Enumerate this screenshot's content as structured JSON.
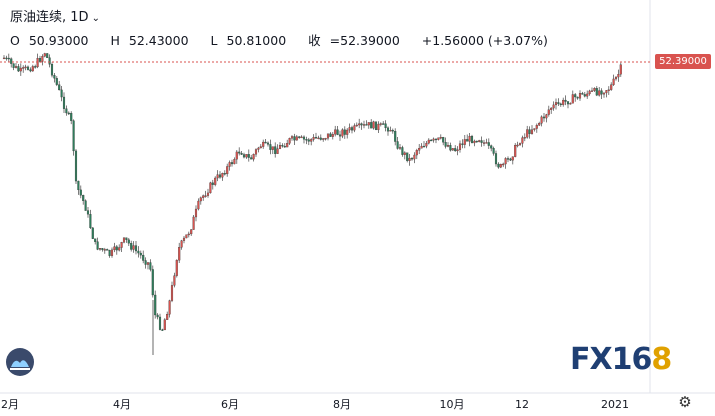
{
  "symbol": {
    "title": "原油连续",
    "interval": "1D"
  },
  "ohlc": {
    "open_label": "O",
    "open": "50.93000",
    "high_label": "H",
    "high": "52.43000",
    "low_label": "L",
    "low": "50.81000",
    "close_label": "收",
    "close": "=52.39000",
    "change": "+1.56000 (+3.07%)"
  },
  "price_tag": "52.39000",
  "x_ticks": [
    "2月",
    "4月",
    "6月",
    "8月",
    "10月",
    "12",
    "2021"
  ],
  "brand": {
    "text_a": "FX16",
    "text_b": "8"
  },
  "colors": {
    "up": "#d9534f",
    "down": "#2e7d5b",
    "price_line": "#d9534f",
    "brand": "#1f3f73"
  },
  "icons": {
    "chart_logo": "tradingview-logo-icon",
    "settings": "gear-icon"
  }
}
